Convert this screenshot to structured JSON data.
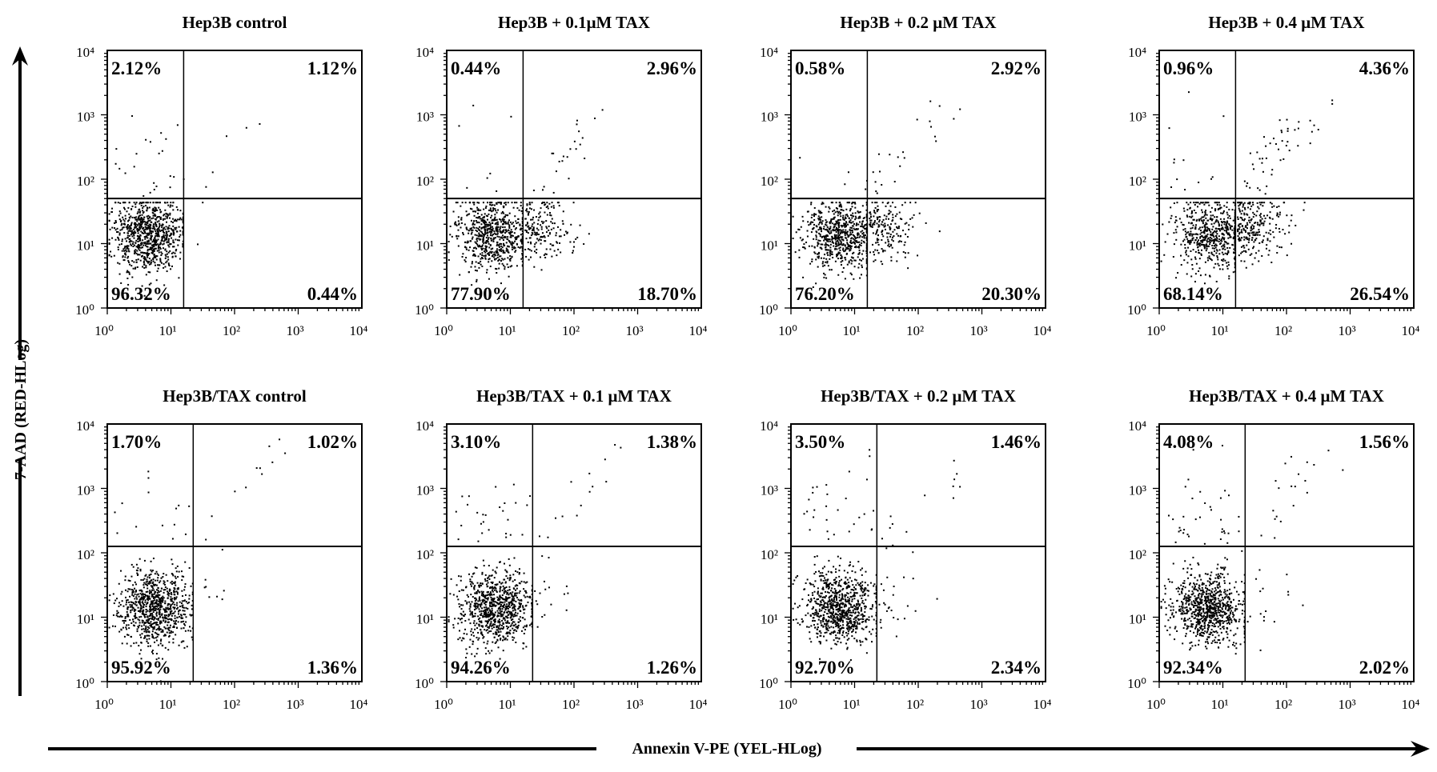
{
  "chart_data": [
    {
      "type": "scatter",
      "title": "Hep3B control",
      "quadrants": {
        "upper_left": "2.12%",
        "upper_right": "1.12%",
        "lower_left": "96.32%",
        "lower_right": "0.44%"
      }
    },
    {
      "type": "scatter",
      "title": "Hep3B + 0.1μM TAX",
      "quadrants": {
        "upper_left": "0.44%",
        "upper_right": "2.96%",
        "lower_left": "77.90%",
        "lower_right": "18.70%"
      }
    },
    {
      "type": "scatter",
      "title": "Hep3B + 0.2  μM TAX",
      "quadrants": {
        "upper_left": "0.58%",
        "upper_right": "2.92%",
        "lower_left": "76.20%",
        "lower_right": "20.30%"
      }
    },
    {
      "type": "scatter",
      "title": "Hep3B + 0.4  μM TAX",
      "quadrants": {
        "upper_left": "0.96%",
        "upper_right": "4.36%",
        "lower_left": "68.14%",
        "lower_right": "26.54%"
      }
    },
    {
      "type": "scatter",
      "title": "Hep3B/TAX control",
      "quadrants": {
        "upper_left": "1.70%",
        "upper_right": "1.02%",
        "lower_left": "95.92%",
        "lower_right": "1.36%"
      }
    },
    {
      "type": "scatter",
      "title": "Hep3B/TAX + 0.1  μM TAX",
      "quadrants": {
        "upper_left": "3.10%",
        "upper_right": "1.38%",
        "lower_left": "94.26%",
        "lower_right": "1.26%"
      }
    },
    {
      "type": "scatter",
      "title": "Hep3B/TAX + 0.2   μM TAX",
      "quadrants": {
        "upper_left": "3.50%",
        "upper_right": "1.46%",
        "lower_left": "92.70%",
        "lower_right": "2.34%"
      }
    },
    {
      "type": "scatter",
      "title": "Hep3B/TAX + 0.4  μM TAX",
      "quadrants": {
        "upper_left": "4.08%",
        "upper_right": "1.56%",
        "lower_left": "92.34%",
        "lower_right": "2.02%"
      }
    }
  ],
  "axes": {
    "xlabel": "Annexin V-PE (YEL-HLog)",
    "ylabel": "7-AAD (RED-HLog)",
    "scale": "log",
    "xlim": [
      1,
      10000
    ],
    "ylim": [
      1,
      10000
    ],
    "tick_labels": [
      "10⁰",
      "10¹",
      "10²",
      "10³",
      "10⁴"
    ],
    "grid": false
  },
  "colors": {
    "points": "#000000",
    "background": "#ffffff"
  }
}
